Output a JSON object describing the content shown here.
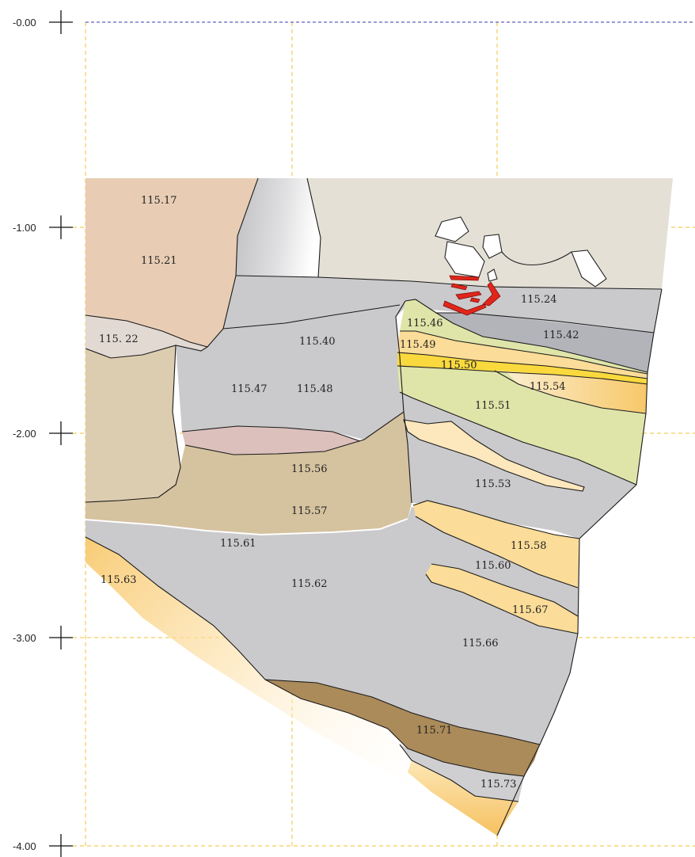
{
  "depth_axis": {
    "ticks": [
      "-0.00",
      "-1.00",
      "-2.00",
      "-3.00",
      "-4.00"
    ]
  },
  "layers": [
    {
      "id": "115.17"
    },
    {
      "id": "115.21"
    },
    {
      "id": "115. 22"
    },
    {
      "id": "115.24"
    },
    {
      "id": "115.40"
    },
    {
      "id": "115.42"
    },
    {
      "id": "115.46"
    },
    {
      "id": "115.47"
    },
    {
      "id": "115.48"
    },
    {
      "id": "115.49"
    },
    {
      "id": "115.50"
    },
    {
      "id": "115.51"
    },
    {
      "id": "115.53"
    },
    {
      "id": "115.54"
    },
    {
      "id": "115.56"
    },
    {
      "id": "115.57"
    },
    {
      "id": "115.58"
    },
    {
      "id": "115.60"
    },
    {
      "id": "115.61"
    },
    {
      "id": "115.62"
    },
    {
      "id": "115.63"
    },
    {
      "id": "115.66"
    },
    {
      "id": "115.67"
    },
    {
      "id": "115.71"
    },
    {
      "id": "115.73"
    }
  ],
  "colors": {
    "sand_tan": "#e8cdb4",
    "beige_top": "#e5e0d6",
    "grey": "#cacacc",
    "dark_grey": "#b3b4ba",
    "khaki": "#d5c29f",
    "light_tan": "#dccdb0",
    "green": "#dfe5a9",
    "orange": "#fbdc98",
    "yellow": "#f9d93e",
    "brown": "#ab8b5a",
    "pink": "#dcc0bc",
    "red": "#e0261b",
    "grid": "#f2c230",
    "datum": "#3a3ab0"
  }
}
